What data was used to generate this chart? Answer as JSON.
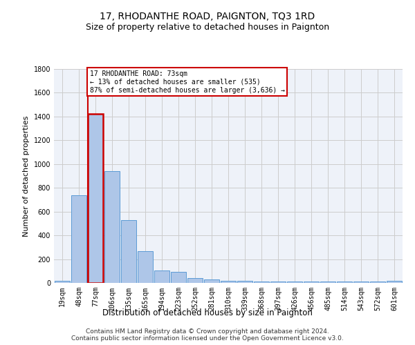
{
  "title": "17, RHODANTHE ROAD, PAIGNTON, TQ3 1RD",
  "subtitle": "Size of property relative to detached houses in Paignton",
  "xlabel": "Distribution of detached houses by size in Paignton",
  "ylabel": "Number of detached properties",
  "bar_values": [
    20,
    740,
    1420,
    940,
    530,
    265,
    105,
    95,
    40,
    30,
    20,
    15,
    10,
    10,
    10,
    10,
    10,
    10,
    10,
    10,
    15
  ],
  "bar_labels": [
    "19sqm",
    "48sqm",
    "77sqm",
    "106sqm",
    "135sqm",
    "165sqm",
    "194sqm",
    "223sqm",
    "252sqm",
    "281sqm",
    "310sqm",
    "339sqm",
    "368sqm",
    "397sqm",
    "426sqm",
    "456sqm",
    "485sqm",
    "514sqm",
    "543sqm",
    "572sqm",
    "601sqm"
  ],
  "bar_color": "#aec6e8",
  "bar_edge_color": "#5b9bd5",
  "highlight_bar_index": 2,
  "highlight_color": "#cc0000",
  "annotation_text": "17 RHODANTHE ROAD: 73sqm\n← 13% of detached houses are smaller (535)\n87% of semi-detached houses are larger (3,636) →",
  "annotation_box_color": "white",
  "annotation_border_color": "#cc0000",
  "ylim": [
    0,
    1800
  ],
  "yticks": [
    0,
    200,
    400,
    600,
    800,
    1000,
    1200,
    1400,
    1600,
    1800
  ],
  "grid_color": "#cccccc",
  "bg_color": "#eef2f9",
  "footer_text": "Contains HM Land Registry data © Crown copyright and database right 2024.\nContains public sector information licensed under the Open Government Licence v3.0.",
  "title_fontsize": 10,
  "subtitle_fontsize": 9,
  "xlabel_fontsize": 8.5,
  "ylabel_fontsize": 8,
  "tick_fontsize": 7,
  "footer_fontsize": 6.5
}
